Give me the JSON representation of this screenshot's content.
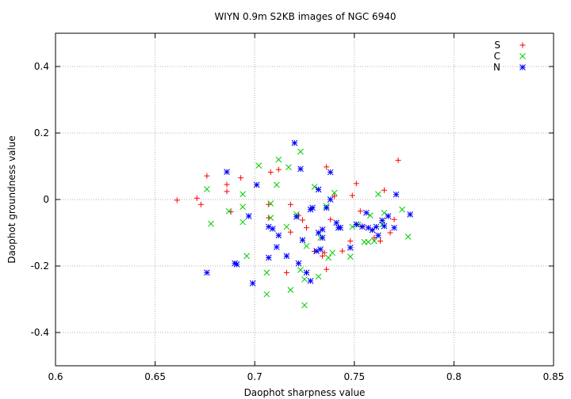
{
  "chart_data": {
    "type": "scatter",
    "title": "WIYN 0.9m S2KB images of NGC 6940",
    "xlabel": "Daophot sharpness value",
    "ylabel": "Daophot groundness value",
    "xlim": [
      0.6,
      0.85
    ],
    "ylim": [
      -0.5,
      0.5
    ],
    "xticks": [
      0.6,
      0.65,
      0.7,
      0.75,
      0.8,
      0.85
    ],
    "xtick_labels": [
      "0.6",
      "0.65",
      "0.7",
      "0.75",
      "0.8",
      "0.85"
    ],
    "yticks": [
      -0.4,
      -0.2,
      0,
      0.2,
      0.4
    ],
    "ytick_labels": [
      "-0.4",
      "-0.2",
      "0",
      "0.2",
      "0.4"
    ],
    "grid": true,
    "legend_position": "top-right",
    "series": [
      {
        "name": "S",
        "color": "#ff0000",
        "marker": "plus",
        "points": [
          [
            0.661,
            -0.002
          ],
          [
            0.671,
            0.004
          ],
          [
            0.673,
            -0.015
          ],
          [
            0.676,
            0.071
          ],
          [
            0.686,
            0.045
          ],
          [
            0.686,
            0.024
          ],
          [
            0.688,
            -0.037
          ],
          [
            0.693,
            0.065
          ],
          [
            0.707,
            -0.055
          ],
          [
            0.708,
            0.082
          ],
          [
            0.707,
            -0.015
          ],
          [
            0.712,
            0.09
          ],
          [
            0.716,
            -0.22
          ],
          [
            0.718,
            -0.015
          ],
          [
            0.718,
            -0.098
          ],
          [
            0.722,
            -0.048
          ],
          [
            0.724,
            -0.062
          ],
          [
            0.726,
            -0.085
          ],
          [
            0.73,
            -0.156
          ],
          [
            0.734,
            -0.17
          ],
          [
            0.735,
            -0.16
          ],
          [
            0.736,
            0.098
          ],
          [
            0.736,
            -0.21
          ],
          [
            0.738,
            -0.06
          ],
          [
            0.74,
            0.01
          ],
          [
            0.744,
            -0.155
          ],
          [
            0.748,
            -0.125
          ],
          [
            0.749,
            0.012
          ],
          [
            0.751,
            0.048
          ],
          [
            0.753,
            -0.035
          ],
          [
            0.754,
            -0.08
          ],
          [
            0.76,
            -0.115
          ],
          [
            0.763,
            -0.125
          ],
          [
            0.765,
            0.028
          ],
          [
            0.768,
            -0.1
          ],
          [
            0.77,
            -0.06
          ],
          [
            0.772,
            0.118
          ]
        ]
      },
      {
        "name": "C",
        "color": "#00cc00",
        "marker": "cross",
        "points": [
          [
            0.676,
            0.031
          ],
          [
            0.678,
            -0.073
          ],
          [
            0.687,
            -0.035
          ],
          [
            0.694,
            0.016
          ],
          [
            0.694,
            -0.022
          ],
          [
            0.694,
            -0.068
          ],
          [
            0.696,
            -0.17
          ],
          [
            0.702,
            0.102
          ],
          [
            0.706,
            -0.285
          ],
          [
            0.706,
            -0.22
          ],
          [
            0.708,
            -0.055
          ],
          [
            0.708,
            -0.012
          ],
          [
            0.711,
            0.044
          ],
          [
            0.712,
            0.12
          ],
          [
            0.716,
            -0.082
          ],
          [
            0.717,
            0.097
          ],
          [
            0.718,
            -0.272
          ],
          [
            0.721,
            -0.045
          ],
          [
            0.723,
            0.144
          ],
          [
            0.723,
            -0.212
          ],
          [
            0.725,
            -0.318
          ],
          [
            0.725,
            -0.24
          ],
          [
            0.726,
            -0.14
          ],
          [
            0.73,
            0.038
          ],
          [
            0.732,
            -0.232
          ],
          [
            0.733,
            -0.115
          ],
          [
            0.736,
            -0.02
          ],
          [
            0.737,
            -0.175
          ],
          [
            0.739,
            -0.16
          ],
          [
            0.74,
            0.02
          ],
          [
            0.748,
            -0.172
          ],
          [
            0.749,
            -0.082
          ],
          [
            0.752,
            -0.076
          ],
          [
            0.755,
            -0.128
          ],
          [
            0.757,
            -0.128
          ],
          [
            0.758,
            -0.048
          ],
          [
            0.76,
            -0.125
          ],
          [
            0.762,
            0.016
          ],
          [
            0.764,
            -0.075
          ],
          [
            0.765,
            -0.04
          ],
          [
            0.774,
            -0.03
          ],
          [
            0.777,
            -0.112
          ]
        ]
      },
      {
        "name": "N",
        "color": "#0000ff",
        "marker": "star",
        "points": [
          [
            0.676,
            -0.22
          ],
          [
            0.686,
            0.083
          ],
          [
            0.69,
            -0.192
          ],
          [
            0.691,
            -0.195
          ],
          [
            0.697,
            -0.05
          ],
          [
            0.699,
            -0.252
          ],
          [
            0.701,
            0.044
          ],
          [
            0.707,
            -0.175
          ],
          [
            0.707,
            -0.082
          ],
          [
            0.709,
            -0.088
          ],
          [
            0.711,
            -0.143
          ],
          [
            0.712,
            -0.108
          ],
          [
            0.716,
            -0.17
          ],
          [
            0.72,
            0.17
          ],
          [
            0.721,
            -0.052
          ],
          [
            0.722,
            -0.192
          ],
          [
            0.723,
            0.092
          ],
          [
            0.724,
            -0.122
          ],
          [
            0.726,
            -0.22
          ],
          [
            0.728,
            -0.245
          ],
          [
            0.728,
            -0.03
          ],
          [
            0.729,
            -0.025
          ],
          [
            0.731,
            -0.155
          ],
          [
            0.732,
            0.03
          ],
          [
            0.732,
            -0.1
          ],
          [
            0.733,
            -0.15
          ],
          [
            0.734,
            -0.115
          ],
          [
            0.734,
            -0.09
          ],
          [
            0.736,
            -0.025
          ],
          [
            0.738,
            0.082
          ],
          [
            0.738,
            0.0
          ],
          [
            0.741,
            -0.07
          ],
          [
            0.742,
            -0.085
          ],
          [
            0.743,
            -0.085
          ],
          [
            0.748,
            -0.145
          ],
          [
            0.751,
            -0.075
          ],
          [
            0.754,
            -0.082
          ],
          [
            0.756,
            -0.04
          ],
          [
            0.757,
            -0.085
          ],
          [
            0.759,
            -0.092
          ],
          [
            0.761,
            -0.082
          ],
          [
            0.762,
            -0.108
          ],
          [
            0.764,
            -0.063
          ],
          [
            0.765,
            -0.08
          ],
          [
            0.767,
            -0.05
          ],
          [
            0.77,
            -0.085
          ],
          [
            0.771,
            0.015
          ],
          [
            0.778,
            -0.045
          ]
        ]
      }
    ]
  }
}
